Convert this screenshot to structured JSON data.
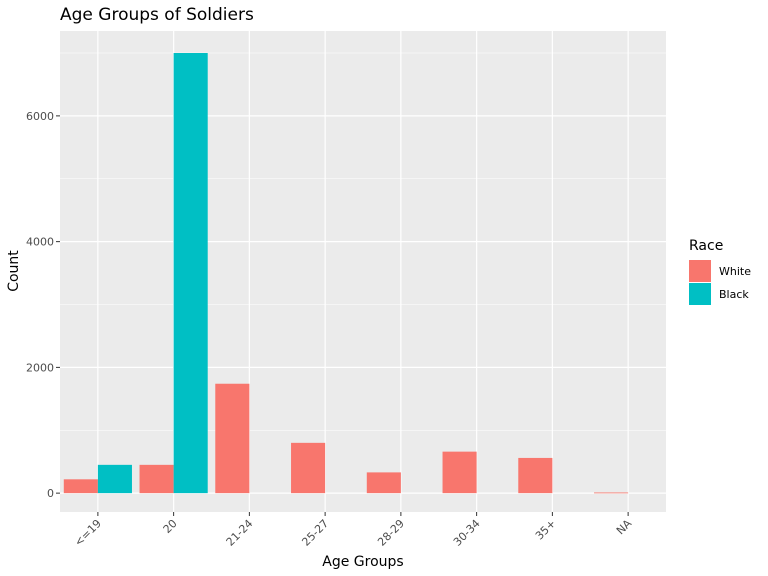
{
  "chart_data": {
    "type": "bar",
    "title": "Age Groups of Soldiers",
    "xlabel": "Age Groups",
    "ylabel": "Count",
    "categories": [
      "<=19",
      "20",
      "21-24",
      "25-27",
      "28-29",
      "30-34",
      "35+",
      "NA"
    ],
    "series": [
      {
        "name": "White",
        "color": "#F8766D",
        "values": [
          220,
          450,
          1740,
          800,
          330,
          660,
          560,
          10
        ]
      },
      {
        "name": "Black",
        "color": "#00BFC4",
        "values": [
          450,
          7000,
          0,
          0,
          0,
          0,
          0,
          0
        ]
      }
    ],
    "ylim": [
      -300,
      7350
    ],
    "yticks": [
      0,
      2000,
      4000,
      6000
    ],
    "grid": true,
    "legend": {
      "title": "Race",
      "placement": "right"
    },
    "panel_background": "#EBEBEB",
    "grid_color": "#FFFFFF"
  }
}
